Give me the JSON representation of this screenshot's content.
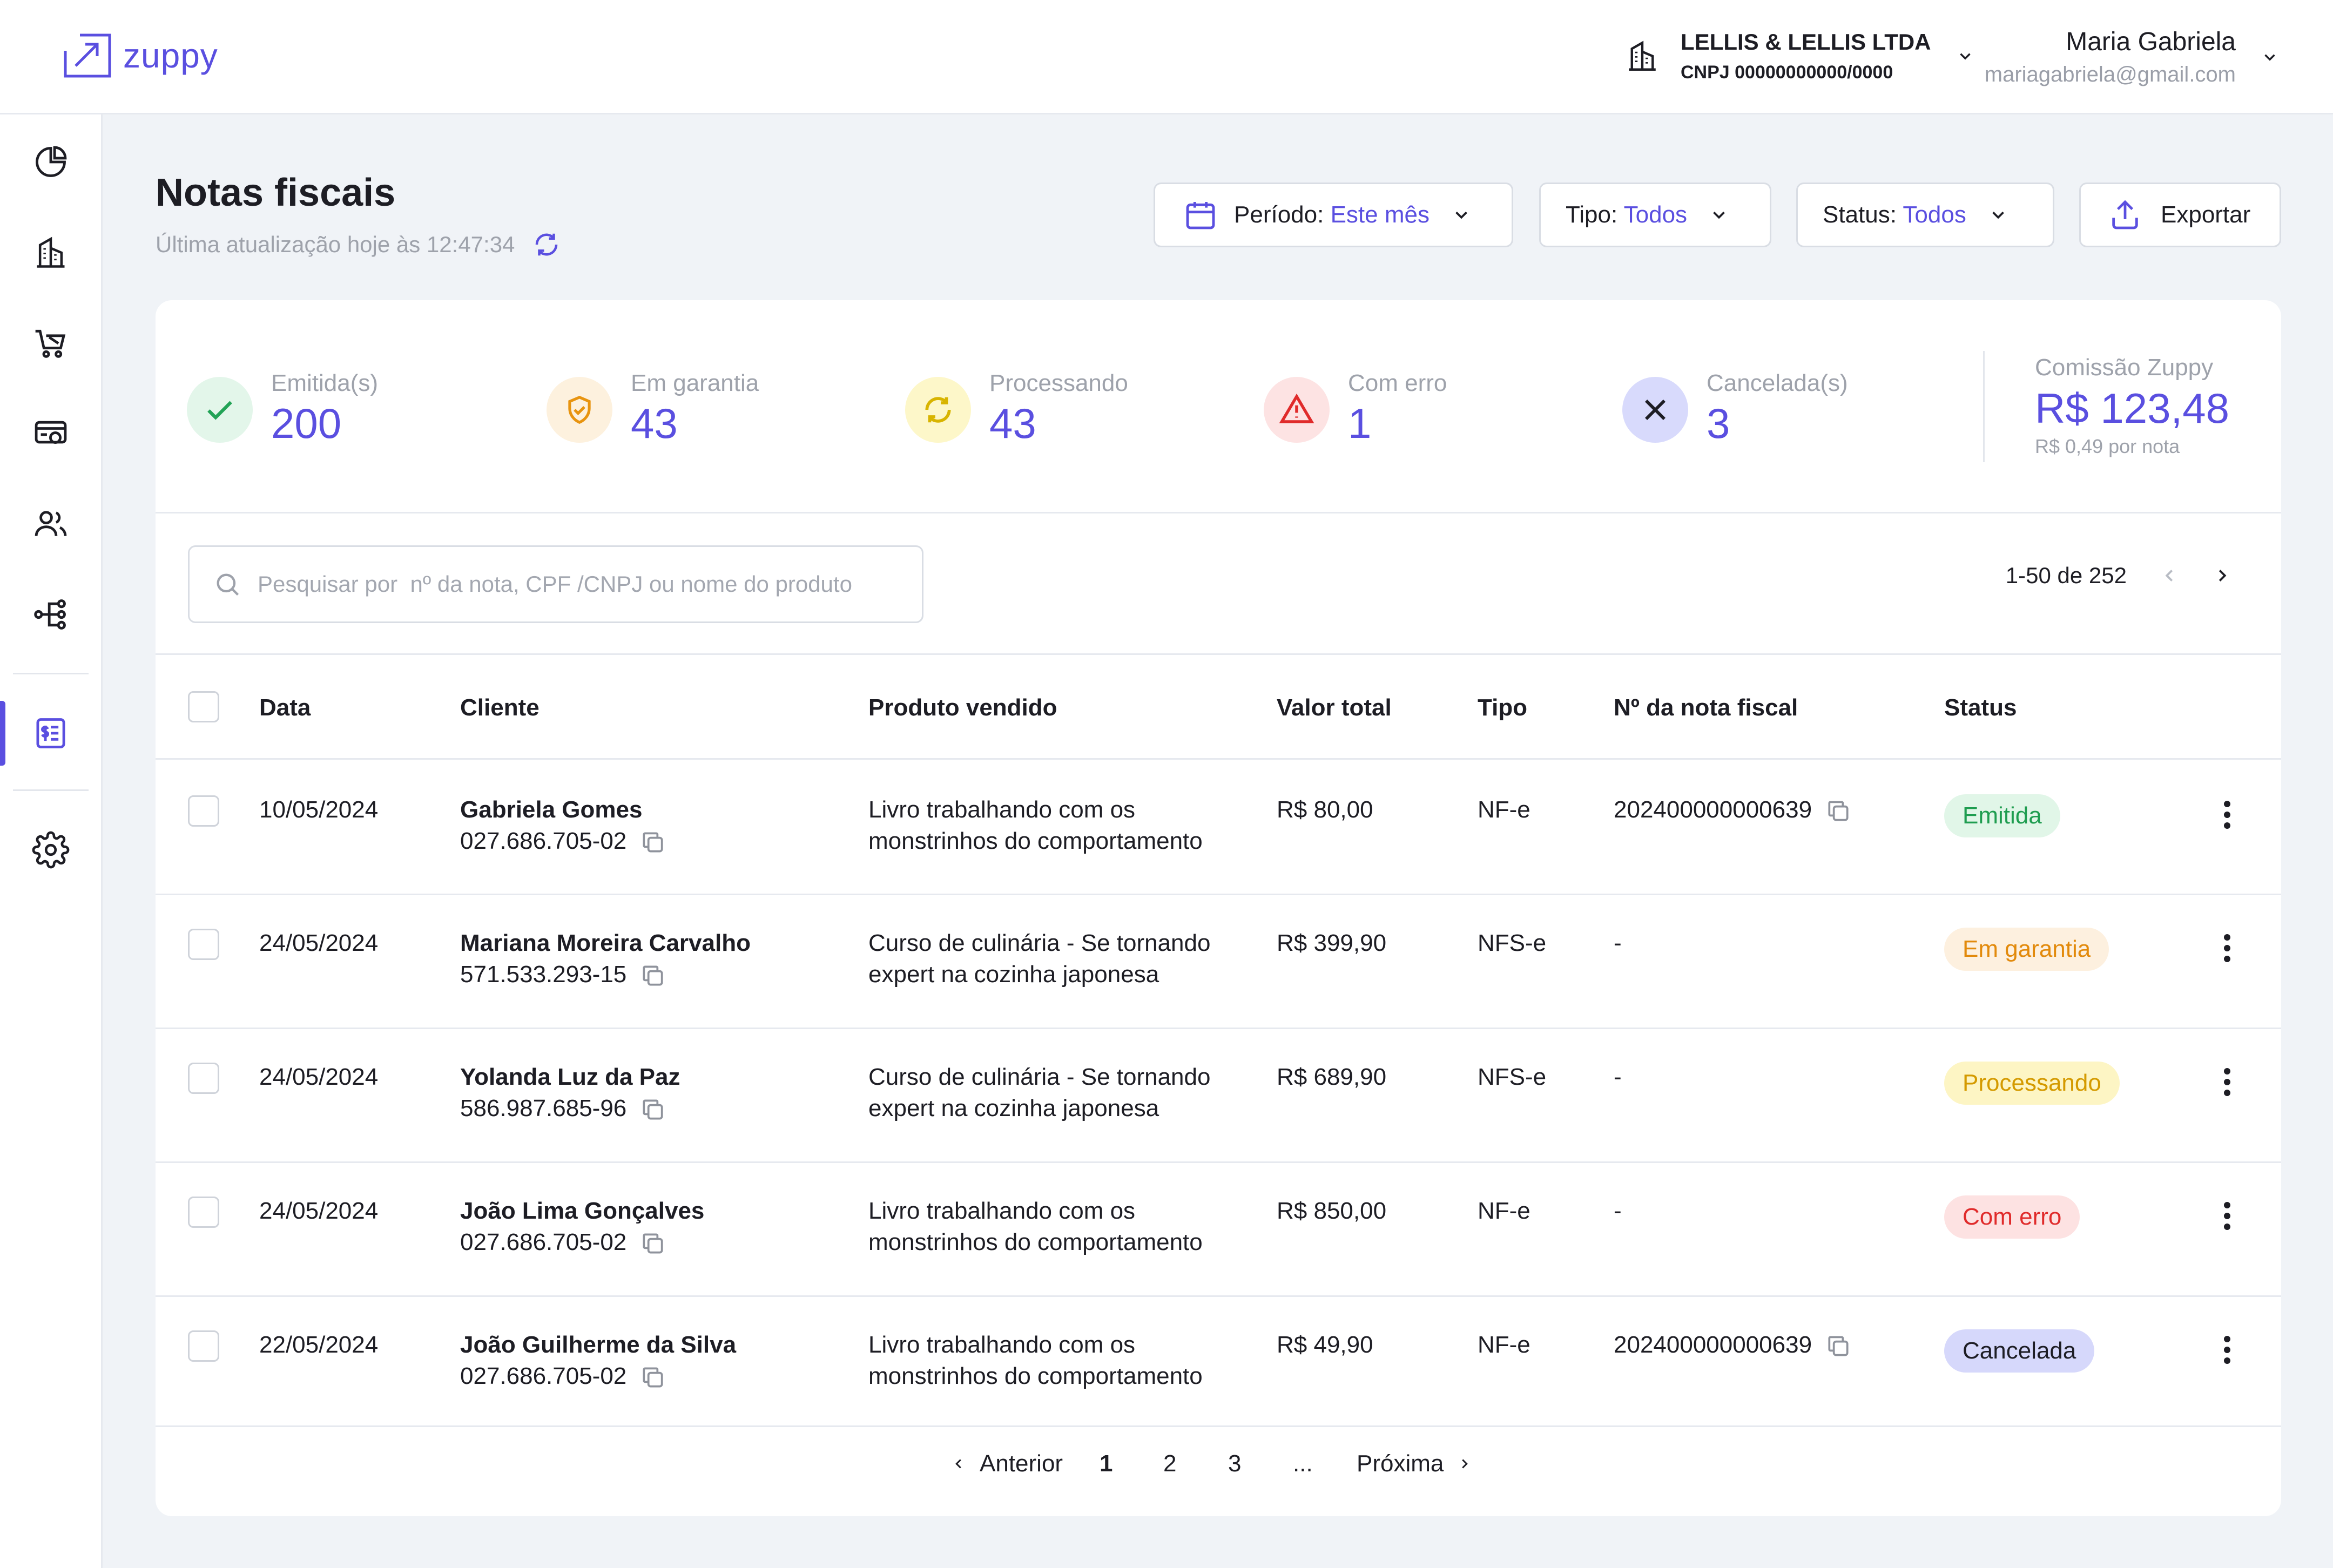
{
  "brand": {
    "name": "zuppy"
  },
  "company": {
    "name": "LELLIS & LELLIS LTDA",
    "cnpj": "CNPJ 00000000000/0000"
  },
  "user": {
    "name": "Maria Gabriela",
    "email": "mariagabriela@gmail.com"
  },
  "sidebar": {
    "items": [
      {
        "icon": "dashboard-pie-icon"
      },
      {
        "icon": "building-icon"
      },
      {
        "icon": "cart-icon"
      },
      {
        "icon": "payment-settings-icon"
      },
      {
        "icon": "users-icon"
      },
      {
        "icon": "integrations-icon"
      },
      {
        "icon": "invoice-icon",
        "active": true
      },
      {
        "icon": "gear-icon"
      }
    ]
  },
  "page": {
    "title": "Notas fiscais",
    "last_update": "Última atualização hoje às 12:47:34"
  },
  "filters": {
    "period_label": "Período",
    "period_value": "Este mês",
    "type_label": "Tipo",
    "type_value": "Todos",
    "status_label": "Status",
    "status_value": "Todos",
    "export_label": "Exportar"
  },
  "stats": [
    {
      "label": "Emitida(s)",
      "value": "200",
      "icon": "check-icon",
      "bg": "#e3f6ea",
      "fg": "#22a356"
    },
    {
      "label": "Em garantia",
      "value": "43",
      "icon": "shield-check-icon",
      "bg": "#fdf1de",
      "fg": "#e8940f"
    },
    {
      "label": "Processando",
      "value": "43",
      "icon": "refresh-icon",
      "bg": "#fdf7c9",
      "fg": "#d8b400"
    },
    {
      "label": "Com erro",
      "value": "1",
      "icon": "warning-icon",
      "bg": "#fde3e3",
      "fg": "#e02b2b"
    },
    {
      "label": "Cancelada(s)",
      "value": "3",
      "icon": "close-icon",
      "bg": "#d8dafc",
      "fg": "#1d1d24"
    }
  ],
  "commission": {
    "label": "Comissão Zuppy",
    "value": "R$ 123,48",
    "sub": "R$ 0,49 por nota"
  },
  "search": {
    "placeholder": "Pesquisar por  nº da nota, CPF /CNPJ ou nome do produto"
  },
  "pager": {
    "range": "1-50 de 252"
  },
  "table": {
    "columns": [
      "Data",
      "Cliente",
      "Produto vendido",
      "Valor total",
      "Tipo",
      "Nº da nota fiscal",
      "Status"
    ],
    "rows": [
      {
        "date": "10/05/2024",
        "client": "Gabriela Gomes",
        "doc": "027.686.705-02",
        "product_1": "Livro trabalhando com os",
        "product_2": "monstrinhos do comportamento",
        "value": "R$ 80,00",
        "type": "NF-e",
        "nf": "202400000000639",
        "status": "Emitida",
        "status_bg": "#e1f6e8",
        "status_fg": "#1f9d50"
      },
      {
        "date": "24/05/2024",
        "client": "Mariana Moreira Carvalho",
        "doc": "571.533.293-15",
        "product_1": "Curso de culinária - Se tornando",
        "product_2": "expert na cozinha japonesa",
        "value": "R$ 399,90",
        "type": "NFS-e",
        "nf": "-",
        "status": "Em garantia",
        "status_bg": "#fdf0df",
        "status_fg": "#e28a0c"
      },
      {
        "date": "24/05/2024",
        "client": "Yolanda Luz da Paz",
        "doc": "586.987.685-96",
        "product_1": "Curso de culinária - Se tornando",
        "product_2": "expert na cozinha japonesa",
        "value": "R$ 689,90",
        "type": "NFS-e",
        "nf": "-",
        "status": "Processando",
        "status_bg": "#fdf5c4",
        "status_fg": "#d49a00"
      },
      {
        "date": "24/05/2024",
        "client": "João Lima Gonçalves",
        "doc": "027.686.705-02",
        "product_1": "Livro trabalhando com os",
        "product_2": "monstrinhos do comportamento",
        "value": "R$ 850,00",
        "type": "NF-e",
        "nf": "-",
        "status": "Com erro",
        "status_bg": "#fde2e2",
        "status_fg": "#e02b2b"
      },
      {
        "date": "22/05/2024",
        "client": "João Guilherme da Silva",
        "doc": "027.686.705-02",
        "product_1": "Livro trabalhando com os",
        "product_2": "monstrinhos do comportamento",
        "value": "R$ 49,90",
        "type": "NF-e",
        "nf": "202400000000639",
        "status": "Cancelada",
        "status_bg": "#d6d8fb",
        "status_fg": "#1d1d24"
      }
    ]
  },
  "pagination": {
    "prev": "Anterior",
    "pages": [
      "1",
      "2",
      "3",
      "..."
    ],
    "next": "Próxima"
  },
  "colors": {
    "accent": "#5a4fe0",
    "muted": "#9ea2ab",
    "border": "#d9dde4"
  }
}
